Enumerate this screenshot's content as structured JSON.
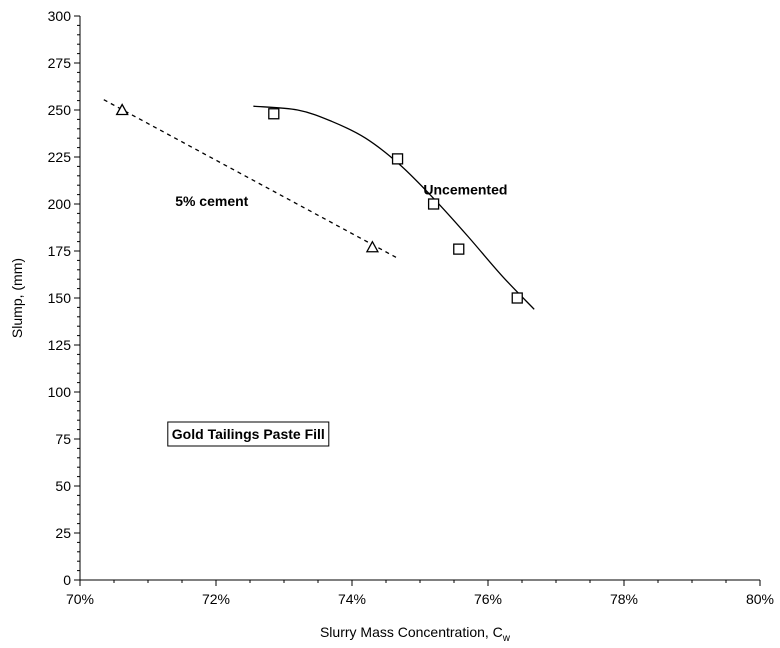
{
  "chart_data": {
    "type": "scatter",
    "title": "",
    "xlabel": "Slurry Mass Concentration, C",
    "xlabel_sub": "w",
    "ylabel": "Slump, (mm)",
    "xlim": [
      70,
      80
    ],
    "ylim": [
      0,
      300
    ],
    "x_ticks": [
      "70%",
      "72%",
      "74%",
      "76%",
      "78%",
      "80%"
    ],
    "y_ticks": [
      "0",
      "25",
      "50",
      "75",
      "100",
      "125",
      "150",
      "175",
      "200",
      "225",
      "250",
      "275",
      "300"
    ],
    "grid": false,
    "series": [
      {
        "name": "Uncemented",
        "marker": "square",
        "line": "solid",
        "x": [
          72.85,
          74.67,
          75.2,
          75.57,
          76.43
        ],
        "y": [
          248,
          224,
          200,
          176,
          150
        ],
        "fit_x": [
          72.55,
          73.2,
          73.7,
          74.2,
          74.7,
          75.2,
          75.7,
          76.2,
          76.68
        ],
        "fit_y": [
          252,
          250,
          244,
          235,
          221,
          203,
          183,
          162,
          144
        ]
      },
      {
        "name": "5% cement",
        "marker": "triangle",
        "line": "dashed",
        "x": [
          70.62,
          74.3
        ],
        "y": [
          250,
          177
        ],
        "fit_x": [
          70.35,
          74.68
        ],
        "fit_y": [
          255.5,
          171
        ]
      }
    ],
    "annotations": [
      {
        "text": "Uncemented",
        "x": 75.05,
        "y": 205,
        "boxed": false
      },
      {
        "text": "5% cement",
        "x": 71.4,
        "y": 199,
        "boxed": false
      },
      {
        "text": "Gold Tailings Paste Fill",
        "x": 71.35,
        "y": 75,
        "boxed": true
      }
    ]
  },
  "colors": {
    "axis": "#000000",
    "marker_fill": "#ffffff",
    "line": "#000000"
  }
}
